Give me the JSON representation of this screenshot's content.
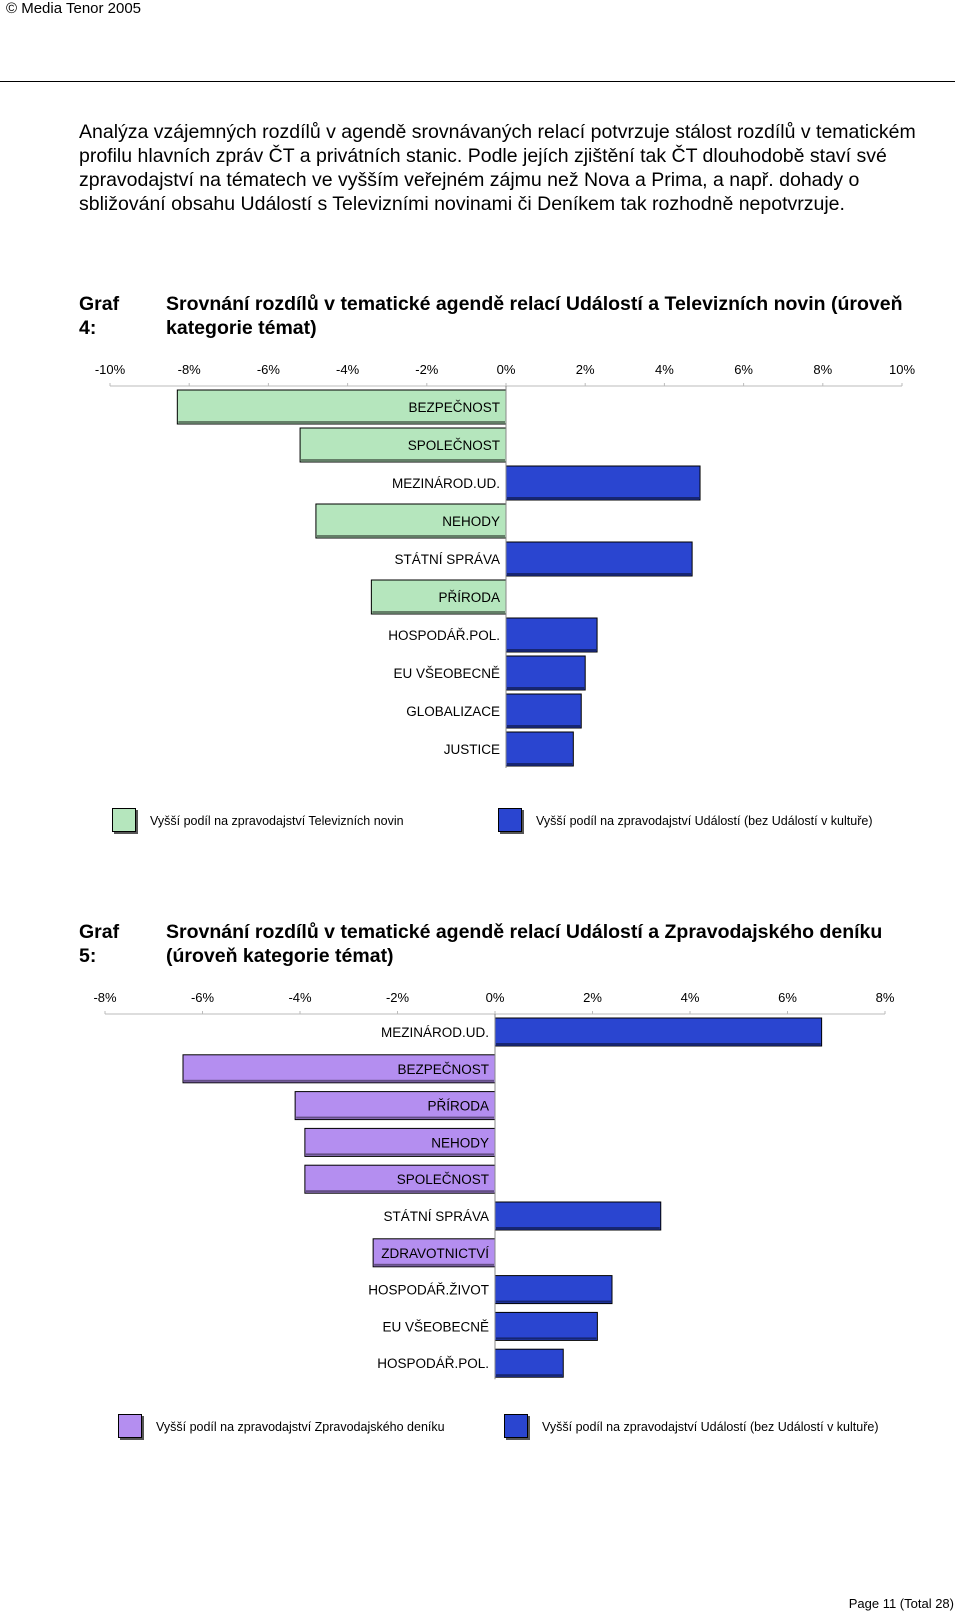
{
  "header": {
    "copyright": "© Media Tenor 2005"
  },
  "intro_text": "Analýza vzájemných rozdílů v agendě srovnávaných relací potvrzuje stálost rozdílů v tematickém profilu hlavních zpráv ČT a privátních stanic. Podle jejích zjištění tak ČT dlouhodobě staví své zpravodajství na tématech ve vyšším veřejném zájmu než Nova a Prima, a např. dohady o sbližování obsahu Událostí s Televizními novinami či Deníkem tak rozhodně nepotvrzuje.",
  "graf4": {
    "label": "Graf 4:",
    "title": "Srovnání rozdílů v tematické agendě relací Událostí a Televizních novin (úroveň kategorie témat)",
    "legend": [
      {
        "text": "Vyšší podíl na zpravodajství Televizních novin",
        "color": "#b5e6bd"
      },
      {
        "text": "Vyšší podíl na zpravodajství Událostí (bez Událostí v kultuře)",
        "color": "#2a45d0"
      }
    ]
  },
  "graf5": {
    "label": "Graf 5:",
    "title": "Srovnání rozdílů v tematické agendě relací Událostí a Zpravodajského deníku (úroveň kategorie témat)",
    "legend": [
      {
        "text": "Vyšší podíl na zpravodajství Zpravodajského deníku",
        "color": "#b48ef0"
      },
      {
        "text": "Vyšší podíl na zpravodajství Událostí (bez Událostí v kultuře)",
        "color": "#2a45d0"
      }
    ]
  },
  "chart_data": [
    {
      "type": "bar",
      "orientation": "horizontal",
      "xlim": [
        -10,
        10
      ],
      "x_ticks": [
        "-10%",
        "-8%",
        "-6%",
        "-4%",
        "-2%",
        "0%",
        "2%",
        "4%",
        "6%",
        "8%",
        "10%"
      ],
      "categories": [
        "BEZPEČNOST",
        "SPOLEČNOST",
        "MEZINÁROD.UD.",
        "NEHODY",
        "STÁTNÍ SPRÁVA",
        "PŘÍRODA",
        "HOSPODÁŘ.POL.",
        "EU VŠEOBECNĚ",
        "GLOBALIZACE",
        "JUSTICE"
      ],
      "values": [
        -8.3,
        -5.2,
        4.9,
        -4.8,
        4.7,
        -3.4,
        2.3,
        2.0,
        1.9,
        1.7
      ],
      "colors": {
        "negative": "#b5e6bd",
        "positive": "#2a45d0"
      }
    },
    {
      "type": "bar",
      "orientation": "horizontal",
      "xlim": [
        -8,
        8
      ],
      "x_ticks": [
        "-8%",
        "-6%",
        "-4%",
        "-2%",
        "0%",
        "2%",
        "4%",
        "6%",
        "8%"
      ],
      "categories": [
        "MEZINÁROD.UD.",
        "BEZPEČNOST",
        "PŘÍRODA",
        "NEHODY",
        "SPOLEČNOST",
        "STÁTNÍ SPRÁVA",
        "ZDRAVOTNICTVÍ",
        "HOSPODÁŘ.ŽIVOT",
        "EU VŠEOBECNĚ",
        "HOSPODÁŘ.POL."
      ],
      "values": [
        6.7,
        -6.4,
        -4.1,
        -3.9,
        -3.9,
        3.4,
        -2.5,
        2.4,
        2.1,
        1.4
      ],
      "colors": {
        "negative": "#b48ef0",
        "positive": "#2a45d0"
      }
    }
  ],
  "footer": {
    "page": "Page 11 (Total 28)"
  }
}
